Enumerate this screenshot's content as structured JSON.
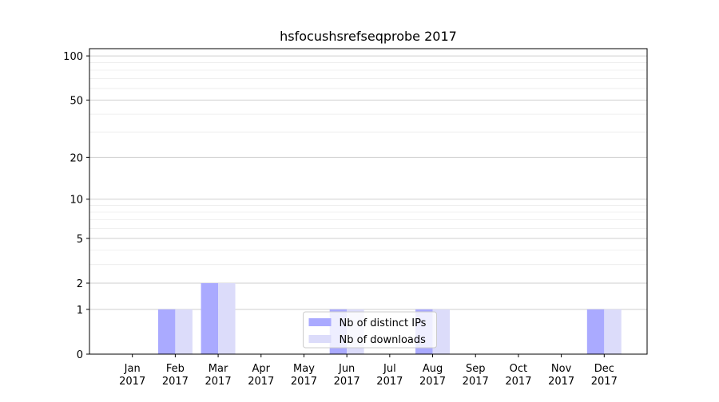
{
  "chart_data": {
    "type": "bar",
    "title": "hsfocushsrefseqprobe 2017",
    "categories": [
      "Jan 2017",
      "Feb 2017",
      "Mar 2017",
      "Apr 2017",
      "May 2017",
      "Jun 2017",
      "Jul 2017",
      "Aug 2017",
      "Sep 2017",
      "Oct 2017",
      "Nov 2017",
      "Dec 2017"
    ],
    "series": [
      {
        "name": "Nb of distinct IPs",
        "color": "#aaaaff",
        "values": [
          0,
          1,
          2,
          0,
          0,
          1,
          0,
          1,
          0,
          0,
          0,
          1
        ]
      },
      {
        "name": "Nb of downloads",
        "color": "#dcdcfa",
        "values": [
          0,
          1,
          2,
          0,
          0,
          1,
          0,
          1,
          0,
          0,
          0,
          1
        ]
      }
    ],
    "yscale": "log1p",
    "ylim": [
      0,
      112
    ],
    "yticks": [
      0,
      1,
      2,
      5,
      10,
      20,
      50,
      100
    ],
    "y_minor_ticks": [
      3,
      4,
      6,
      7,
      8,
      9,
      30,
      40,
      60,
      70,
      80,
      90
    ],
    "grid": true,
    "legend": "lower center"
  }
}
